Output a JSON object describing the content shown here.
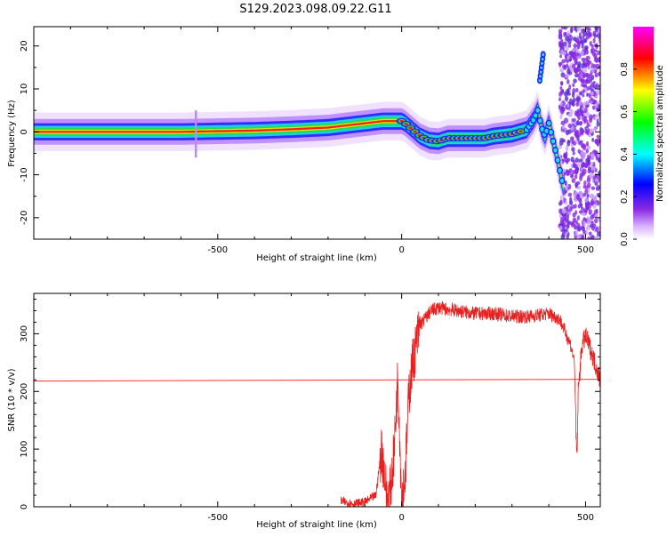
{
  "title": "S129.2023.098.09.22.G11",
  "chart_data": [
    {
      "type": "heatmap",
      "xlabel": "Height of straight line (km)",
      "ylabel": "Frequency (Hz)",
      "xlim": [
        -1000,
        540
      ],
      "ylim": [
        -25,
        24.5
      ],
      "x_ticks": [
        -500,
        0,
        500
      ],
      "y_ticks": [
        -20,
        -10,
        0,
        10,
        20
      ],
      "colorbar": {
        "label": "Normalized spectral amplitude",
        "range": [
          0,
          1
        ],
        "ticks": [
          0.0,
          0.2,
          0.4,
          0.6,
          0.8
        ],
        "colormap": [
          "#ffffff",
          "#8a2be2",
          "#0000ff",
          "#00ffff",
          "#00ff00",
          "#ffff00",
          "#ff0000",
          "#ff00ff"
        ]
      },
      "ridge": {
        "x": [
          -1000,
          -800,
          -600,
          -400,
          -300,
          -200,
          -150,
          -100,
          -50,
          0,
          10,
          30,
          50,
          75,
          100,
          125,
          150,
          175,
          200,
          225,
          250,
          300,
          340,
          360,
          370,
          380,
          390,
          400,
          420,
          440
        ],
        "y": [
          0,
          0,
          0,
          0.3,
          0.6,
          1.0,
          1.5,
          2.0,
          2.5,
          2.5,
          2.0,
          0.5,
          -1.0,
          -2.0,
          -2.2,
          -1.5,
          -1.5,
          -1.5,
          -1.5,
          -1.5,
          -1.0,
          -0.5,
          0.5,
          3.0,
          5.0,
          1.0,
          -1.0,
          2.0,
          -5.0,
          -13.0
        ]
      },
      "annotations": [
        {
          "type": "vertical_streak",
          "x": -560,
          "y_range": [
            -6,
            5
          ]
        },
        {
          "type": "cluster",
          "x": 380,
          "y_range": [
            12,
            18
          ]
        },
        {
          "type": "noise_region",
          "x_range": [
            430,
            540
          ]
        }
      ]
    },
    {
      "type": "line",
      "xlabel": "Height of straight line (km)",
      "ylabel": "SNR (10 * v/v)",
      "xlim": [
        -1000,
        540
      ],
      "ylim": [
        0,
        370
      ],
      "x_ticks": [
        -500,
        0,
        500
      ],
      "y_ticks": [
        0,
        100,
        200,
        300
      ],
      "series": [
        {
          "color": "#ff3030",
          "x": [
            -1000,
            540
          ],
          "y": [
            218,
            221
          ]
        },
        {
          "color": "#e82020",
          "x": [
            -165,
            -130,
            -100,
            -70,
            -55,
            -45,
            -40,
            -30,
            -20,
            -10,
            0,
            10,
            20,
            30,
            50,
            80,
            100,
            150,
            200,
            250,
            300,
            350,
            400,
            430,
            440,
            460,
            470,
            474,
            477,
            480,
            490,
            500,
            510,
            520,
            530,
            540
          ],
          "y": [
            10,
            5,
            8,
            20,
            100,
            50,
            10,
            30,
            100,
            230,
            10,
            60,
            200,
            250,
            315,
            340,
            345,
            340,
            335,
            335,
            330,
            330,
            335,
            325,
            310,
            280,
            250,
            120,
            85,
            200,
            280,
            295,
            280,
            260,
            240,
            220
          ]
        }
      ]
    }
  ]
}
